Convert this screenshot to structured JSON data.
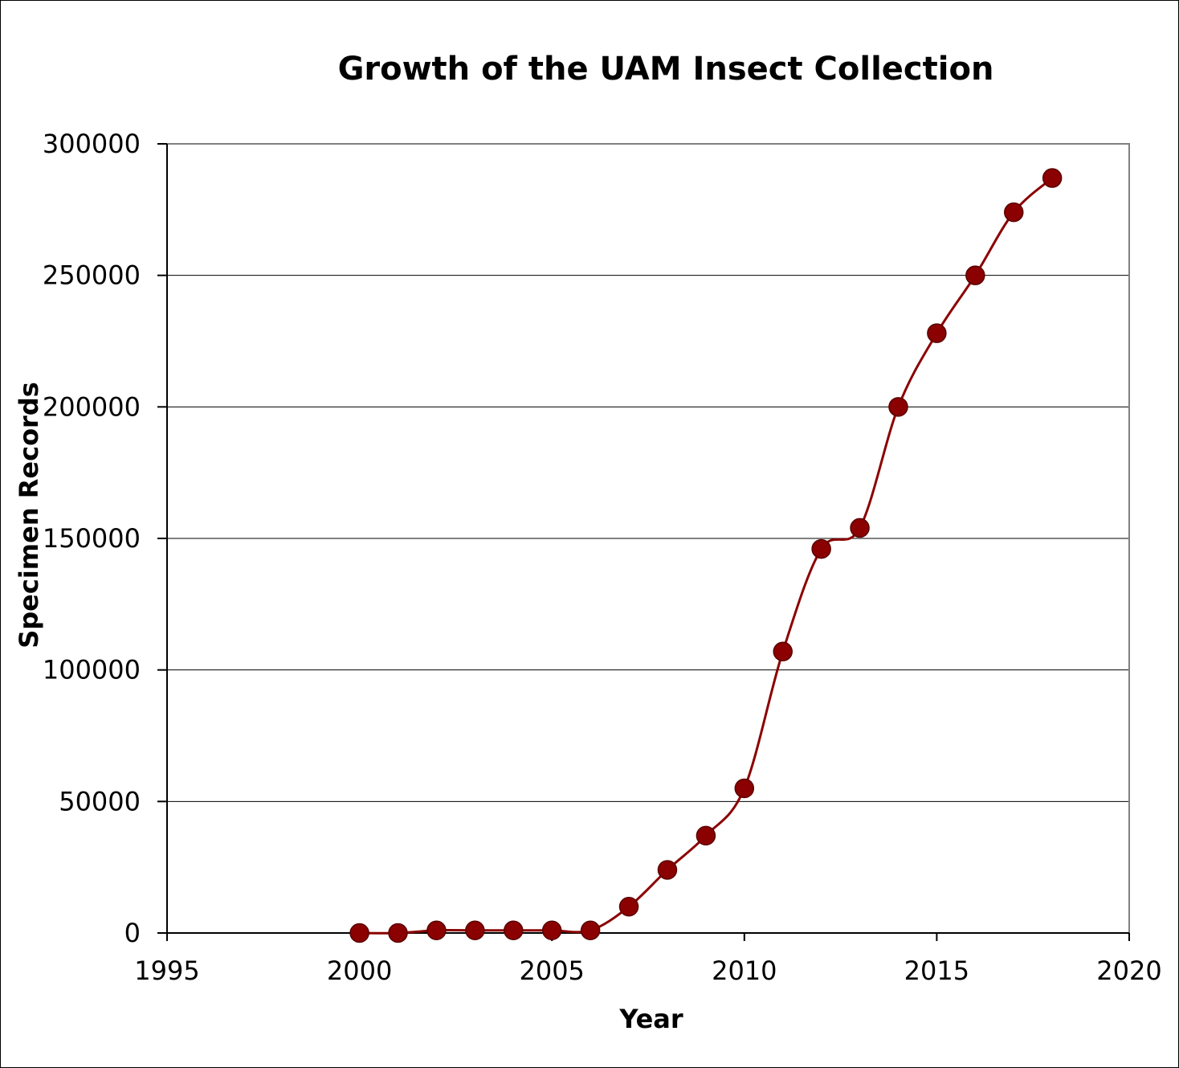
{
  "chart_data": {
    "type": "line",
    "title": "Growth of the UAM Insect Collection",
    "xlabel": "Year",
    "ylabel": "Specimen Records",
    "xlim": [
      1995,
      2020
    ],
    "ylim": [
      0,
      300000
    ],
    "x_ticks": [
      1995,
      2000,
      2005,
      2010,
      2015,
      2020
    ],
    "y_ticks": [
      0,
      50000,
      100000,
      150000,
      200000,
      250000,
      300000
    ],
    "x_tick_labels": [
      "1995",
      "2000",
      "2005",
      "2010",
      "2015",
      "2020"
    ],
    "y_tick_labels": [
      "0",
      "50000",
      "100000",
      "150000",
      "200000",
      "250000",
      "300000"
    ],
    "grid": true,
    "legend": false,
    "smooth": true,
    "series": [
      {
        "name": "Specimen Records",
        "color": "#8b0000",
        "x": [
          2000,
          2001,
          2002,
          2003,
          2004,
          2005,
          2006,
          2007,
          2008,
          2009,
          2010,
          2011,
          2012,
          2013,
          2014,
          2015,
          2016,
          2017,
          2018
        ],
        "values": [
          0,
          0,
          1000,
          1000,
          1000,
          1000,
          1000,
          10000,
          24000,
          37000,
          55000,
          107000,
          146000,
          154000,
          200000,
          228000,
          250000,
          274000,
          287000
        ]
      }
    ]
  }
}
